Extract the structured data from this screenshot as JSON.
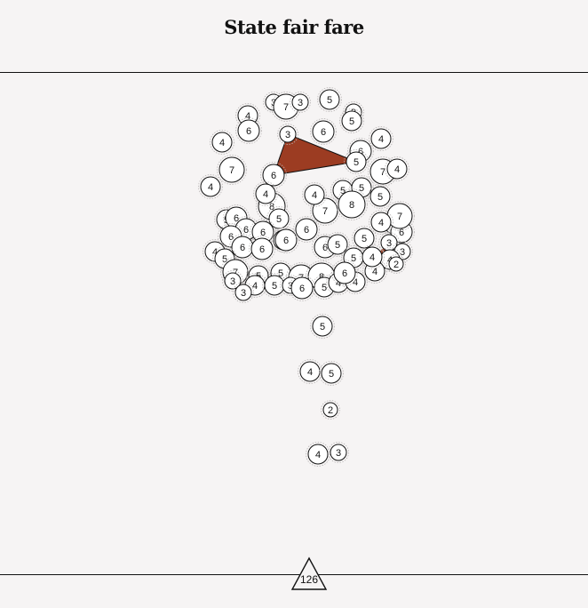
{
  "header": {
    "title": "State fair fare"
  },
  "colors": {
    "background": "#f6f4f4",
    "highlight": "#9c3c22",
    "stroke": "#111111",
    "node_fill": "#ffffff"
  },
  "nodes": [
    {
      "v": "3"
    },
    {
      "v": "7"
    },
    {
      "v": "3"
    },
    {
      "v": "5"
    },
    {
      "v": "3"
    },
    {
      "v": "5"
    },
    {
      "v": "4"
    },
    {
      "v": "6"
    },
    {
      "v": "3"
    },
    {
      "v": "6"
    },
    {
      "v": "4"
    },
    {
      "v": "6"
    },
    {
      "v": "5"
    },
    {
      "v": "7"
    },
    {
      "v": "4"
    },
    {
      "v": "7"
    },
    {
      "v": "6"
    },
    {
      "v": "4"
    },
    {
      "v": "4"
    },
    {
      "v": "8"
    },
    {
      "v": "4"
    },
    {
      "v": "5"
    },
    {
      "v": "5"
    },
    {
      "v": "5"
    },
    {
      "v": "7"
    },
    {
      "v": "8"
    },
    {
      "v": "4"
    },
    {
      "v": "5"
    },
    {
      "v": "6"
    },
    {
      "v": "6"
    },
    {
      "v": "7"
    },
    {
      "v": "5"
    },
    {
      "v": "6"
    },
    {
      "v": "6"
    },
    {
      "v": "6"
    },
    {
      "v": "5"
    },
    {
      "v": "6"
    },
    {
      "v": "6"
    },
    {
      "v": "6"
    },
    {
      "v": "6"
    },
    {
      "v": "6"
    },
    {
      "v": "6"
    },
    {
      "v": "5"
    },
    {
      "v": "5"
    },
    {
      "v": "3"
    },
    {
      "v": "3"
    },
    {
      "v": "4"
    },
    {
      "v": "2"
    },
    {
      "v": "4"
    },
    {
      "v": "5"
    },
    {
      "v": "7"
    },
    {
      "v": "3"
    },
    {
      "v": "5"
    },
    {
      "v": "5"
    },
    {
      "v": "4"
    },
    {
      "v": "3"
    },
    {
      "v": "5"
    },
    {
      "v": "7"
    },
    {
      "v": "6"
    },
    {
      "v": "3"
    },
    {
      "v": "8"
    },
    {
      "v": "5"
    },
    {
      "v": "6"
    },
    {
      "v": "4"
    },
    {
      "v": "4"
    },
    {
      "v": "4"
    },
    {
      "v": "5"
    },
    {
      "v": "4"
    },
    {
      "v": "4"
    },
    {
      "v": "6"
    },
    {
      "v": "5"
    },
    {
      "v": "4"
    },
    {
      "v": "5"
    },
    {
      "v": "2"
    },
    {
      "v": "4"
    },
    {
      "v": "3"
    }
  ],
  "bottom_marker": {
    "label": "126"
  }
}
